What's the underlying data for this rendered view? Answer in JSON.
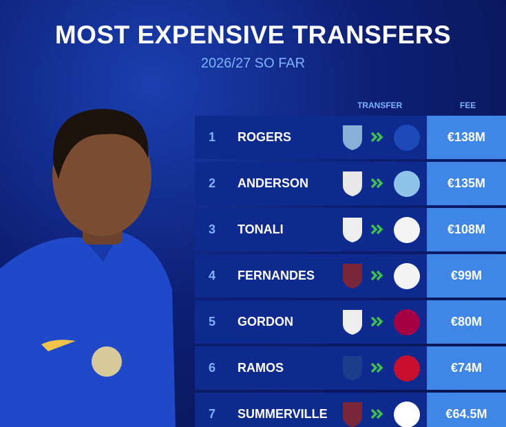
{
  "header": {
    "title": "MOST EXPENSIVE TRANSFERS",
    "subtitle": "2026/27 SO FAR"
  },
  "table": {
    "columns": [
      "TRANSFER",
      "FEE"
    ],
    "rows": [
      [
        1,
        "ROGERS",
        "€138M"
      ],
      [
        2,
        "ANDERSON",
        "€135M"
      ],
      [
        3,
        "TONALI",
        "€108M"
      ],
      [
        4,
        "FERNANDES",
        "€99M"
      ],
      [
        5,
        "GORDON",
        "€80M"
      ],
      [
        6,
        "RAMOS",
        "€74M"
      ],
      [
        7,
        "SUMMERVILLE",
        "€64.5M"
      ]
    ]
  }
}
